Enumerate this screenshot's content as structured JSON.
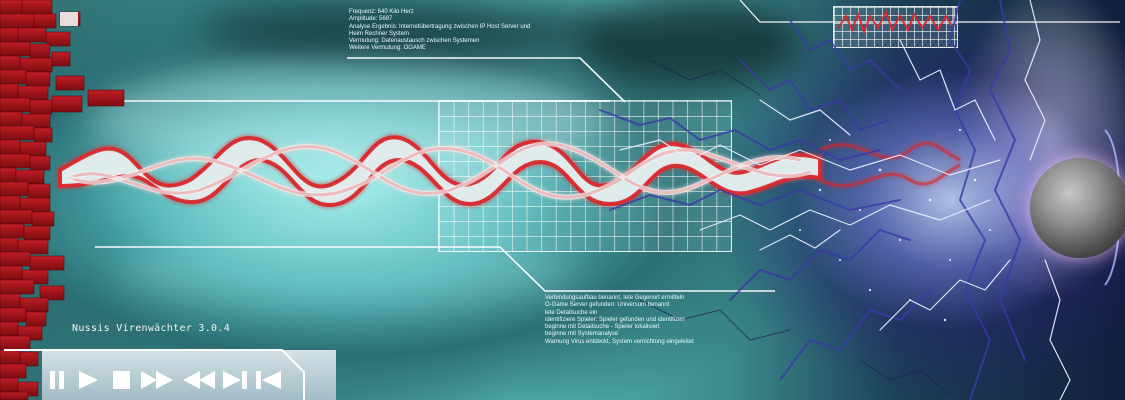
{
  "app": {
    "title": "Nussis Virenwächter 3.0.4"
  },
  "top_info": {
    "lines": [
      "Frequenz: 640 Kilo Herz",
      "Amplitude: 5687",
      "Analyse Ergebnis: Internetübertragung zwischen IP Host Server und",
      "Heim Rechner System",
      "Vermutung: Datenaustausch zwischen Systemen",
      "Weitere Vermutung: OGAME"
    ]
  },
  "bottom_info": {
    "lines": [
      "Verbindungsaufbau benannt, lete Gegenort ermitteln",
      "O-Game Server gefunden: Universum benannt",
      "lete Detailsuche ein",
      "identifiziere Spieler: Spieler gefunden und identifizen",
      "beginne mit Detailsuche - Spieler lokalisiert",
      "beginne mit Systemanalyse",
      "Warnung Virus entdeckt, System vernichtung eingeleitet"
    ]
  },
  "controls": {
    "pause_icon": "pause-icon",
    "play_icon": "play-icon",
    "stop_icon": "stop-icon",
    "fast_forward_icon": "fast-forward-icon",
    "rewind_icon": "rewind-icon",
    "skip_next_icon": "skip-next-icon",
    "skip_previous_icon": "skip-previous-icon"
  },
  "colors": {
    "wave_fill": "#dfe9ea",
    "wave_stroke": "#d9262b",
    "brick_red": "#9a1218",
    "panel_white": "#f4f7f8",
    "lightning_blue": "#5a57d6"
  }
}
